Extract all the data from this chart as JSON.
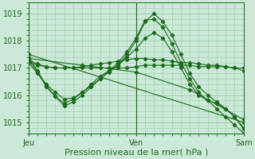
{
  "bg_color": "#cce8d8",
  "grid_color": "#99ccaa",
  "line_color": "#1a6b1a",
  "xlabel": "Pression niveau de la mer( hPa )",
  "xlabel_fontsize": 8,
  "tick_fontsize": 7,
  "ylim": [
    1014.6,
    1019.4
  ],
  "yticks": [
    1015,
    1016,
    1017,
    1018,
    1019
  ],
  "xtick_labels": [
    "Jeu",
    "Ven",
    "Sam"
  ],
  "xtick_positions": [
    0,
    48,
    96
  ],
  "n_points": 97,
  "series": [
    {
      "points": [
        [
          0,
          1017.25
        ],
        [
          4,
          1017.1
        ],
        [
          8,
          1017.05
        ],
        [
          12,
          1017.0
        ],
        [
          16,
          1017.0
        ],
        [
          20,
          1017.0
        ],
        [
          24,
          1017.0
        ],
        [
          28,
          1017.0
        ],
        [
          32,
          1017.0
        ],
        [
          36,
          1017.0
        ],
        [
          40,
          1017.0
        ],
        [
          44,
          1017.0
        ],
        [
          48,
          1017.05
        ],
        [
          52,
          1017.1
        ],
        [
          56,
          1017.1
        ],
        [
          60,
          1017.1
        ],
        [
          64,
          1017.1
        ],
        [
          68,
          1017.1
        ],
        [
          72,
          1017.1
        ],
        [
          76,
          1017.05
        ],
        [
          80,
          1017.05
        ],
        [
          84,
          1017.05
        ],
        [
          88,
          1017.05
        ],
        [
          92,
          1017.0
        ],
        [
          96,
          1017.0
        ]
      ]
    },
    {
      "points": [
        [
          0,
          1017.3
        ],
        [
          4,
          1017.15
        ],
        [
          8,
          1017.05
        ],
        [
          12,
          1017.0
        ],
        [
          16,
          1017.0
        ],
        [
          20,
          1017.0
        ],
        [
          24,
          1017.05
        ],
        [
          28,
          1017.1
        ],
        [
          32,
          1017.15
        ],
        [
          36,
          1017.2
        ],
        [
          40,
          1017.25
        ],
        [
          44,
          1017.3
        ],
        [
          48,
          1017.35
        ],
        [
          52,
          1017.35
        ],
        [
          56,
          1017.3
        ],
        [
          60,
          1017.3
        ],
        [
          64,
          1017.25
        ],
        [
          68,
          1017.2
        ],
        [
          72,
          1017.2
        ],
        [
          76,
          1017.15
        ],
        [
          80,
          1017.1
        ],
        [
          84,
          1017.1
        ],
        [
          88,
          1017.05
        ],
        [
          92,
          1017.0
        ],
        [
          96,
          1016.9
        ]
      ]
    },
    {
      "points": [
        [
          0,
          1017.2
        ],
        [
          4,
          1016.8
        ],
        [
          8,
          1016.4
        ],
        [
          12,
          1016.1
        ],
        [
          16,
          1015.85
        ],
        [
          20,
          1015.9
        ],
        [
          24,
          1016.1
        ],
        [
          28,
          1016.4
        ],
        [
          32,
          1016.7
        ],
        [
          36,
          1016.9
        ],
        [
          40,
          1017.1
        ],
        [
          44,
          1017.4
        ],
        [
          48,
          1017.7
        ],
        [
          52,
          1018.1
        ],
        [
          56,
          1018.3
        ],
        [
          60,
          1018.1
        ],
        [
          64,
          1017.6
        ],
        [
          68,
          1017.0
        ],
        [
          72,
          1016.4
        ],
        [
          76,
          1016.0
        ],
        [
          80,
          1015.8
        ],
        [
          84,
          1015.7
        ],
        [
          88,
          1015.5
        ],
        [
          92,
          1015.2
        ],
        [
          96,
          1014.8
        ]
      ]
    },
    {
      "points": [
        [
          0,
          1017.3
        ],
        [
          4,
          1016.85
        ],
        [
          8,
          1016.3
        ],
        [
          12,
          1015.95
        ],
        [
          16,
          1015.7
        ],
        [
          20,
          1015.85
        ],
        [
          24,
          1016.1
        ],
        [
          28,
          1016.35
        ],
        [
          32,
          1016.6
        ],
        [
          36,
          1016.85
        ],
        [
          40,
          1017.1
        ],
        [
          44,
          1017.5
        ],
        [
          48,
          1018.0
        ],
        [
          52,
          1018.7
        ],
        [
          56,
          1019.0
        ],
        [
          60,
          1018.7
        ],
        [
          64,
          1018.2
        ],
        [
          68,
          1017.5
        ],
        [
          72,
          1016.8
        ],
        [
          76,
          1016.3
        ],
        [
          80,
          1016.0
        ],
        [
          84,
          1015.75
        ],
        [
          88,
          1015.5
        ],
        [
          92,
          1015.2
        ],
        [
          96,
          1014.75
        ]
      ]
    },
    {
      "points": [
        [
          0,
          1017.4
        ],
        [
          4,
          1016.9
        ],
        [
          8,
          1016.35
        ],
        [
          12,
          1015.95
        ],
        [
          16,
          1015.6
        ],
        [
          20,
          1015.75
        ],
        [
          24,
          1016.0
        ],
        [
          28,
          1016.3
        ],
        [
          32,
          1016.6
        ],
        [
          36,
          1016.9
        ],
        [
          40,
          1017.2
        ],
        [
          44,
          1017.6
        ],
        [
          48,
          1018.1
        ],
        [
          52,
          1018.75
        ],
        [
          56,
          1018.8
        ],
        [
          60,
          1018.5
        ],
        [
          64,
          1017.9
        ],
        [
          68,
          1017.2
        ],
        [
          72,
          1016.6
        ],
        [
          76,
          1016.1
        ],
        [
          80,
          1015.8
        ],
        [
          84,
          1015.5
        ],
        [
          88,
          1015.2
        ],
        [
          92,
          1014.9
        ],
        [
          96,
          1014.6
        ]
      ]
    },
    {
      "points": [
        [
          0,
          1017.5
        ],
        [
          96,
          1015.0
        ]
      ]
    },
    {
      "points": [
        [
          0,
          1017.35
        ],
        [
          24,
          1017.1
        ],
        [
          48,
          1016.85
        ],
        [
          72,
          1016.2
        ],
        [
          96,
          1015.1
        ]
      ]
    }
  ]
}
